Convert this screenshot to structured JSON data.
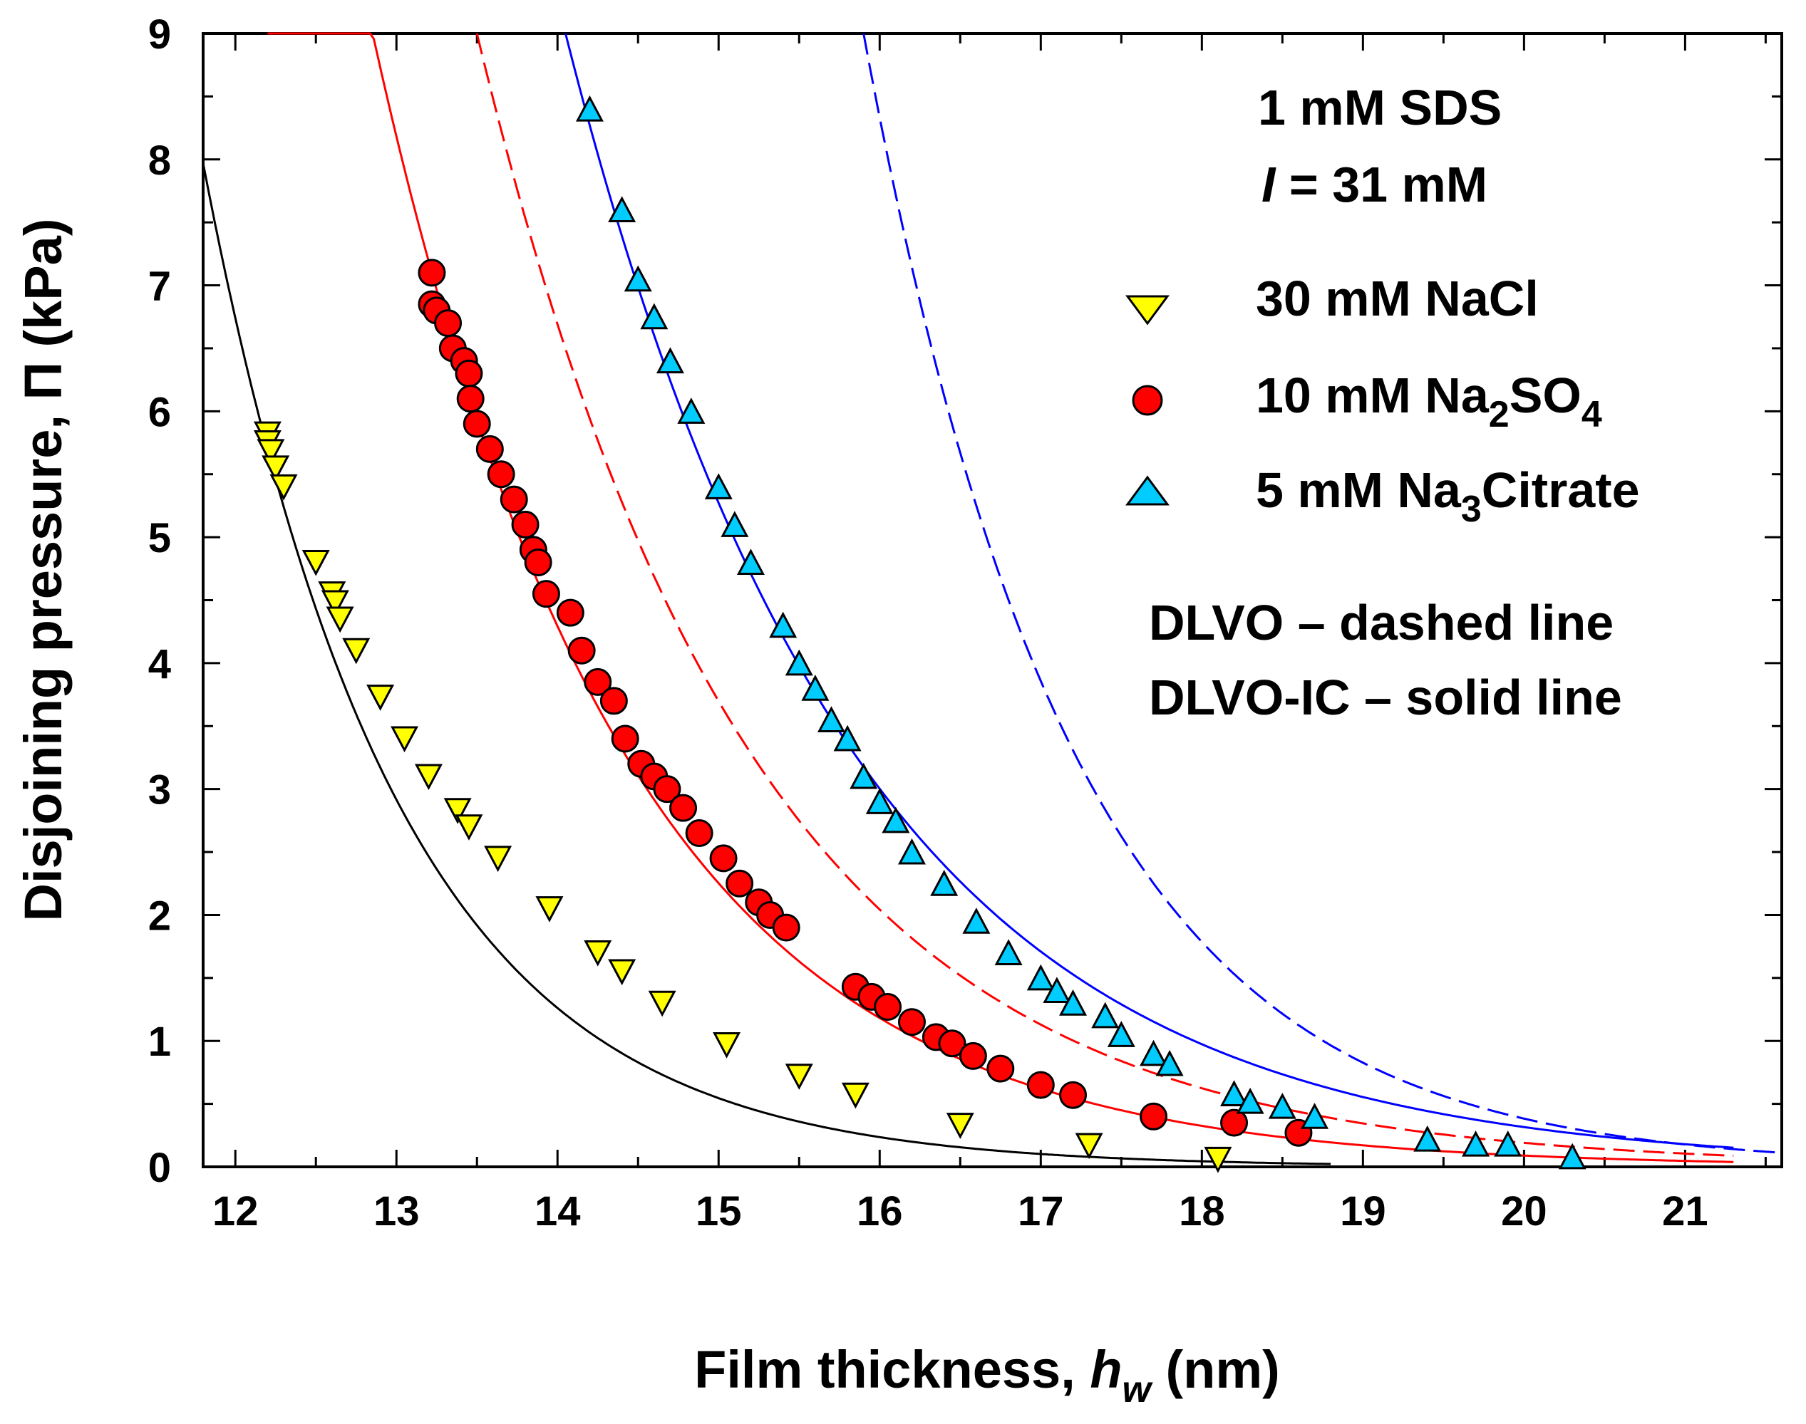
{
  "chart_data": {
    "type": "scatter",
    "xlabel": "Film thickness, ",
    "xlabel_var": "h",
    "xlabel_sub": "w",
    "xlabel_unit": " (nm)",
    "ylabel": "Disjoining pressure, Π (kPa)",
    "xlim": [
      11.8,
      21.6
    ],
    "ylim": [
      0,
      9
    ],
    "xticks": [
      12,
      13,
      14,
      15,
      16,
      17,
      18,
      19,
      20,
      21
    ],
    "yticks": [
      0,
      1,
      2,
      3,
      4,
      5,
      6,
      7,
      8,
      9
    ],
    "annotations": {
      "line1": "1 mM SDS",
      "line2_var": "I",
      "line2_rest": " = 31 mM",
      "dlvo_note": "DLVO – dashed line",
      "dlvoic_note": "DLVO-IC – solid line"
    },
    "series": [
      {
        "name": "30 mM NaCl",
        "legend": {
          "pre": "30 mM NaCl",
          "sub": "",
          "post": ""
        },
        "marker": "triangle-down",
        "color": "#ffff00",
        "points": [
          [
            12.2,
            5.82
          ],
          [
            12.2,
            5.75
          ],
          [
            12.22,
            5.68
          ],
          [
            12.25,
            5.55
          ],
          [
            12.3,
            5.4
          ],
          [
            12.5,
            4.8
          ],
          [
            12.6,
            4.55
          ],
          [
            12.62,
            4.48
          ],
          [
            12.65,
            4.35
          ],
          [
            12.75,
            4.1
          ],
          [
            12.9,
            3.73
          ],
          [
            13.05,
            3.4
          ],
          [
            13.2,
            3.1
          ],
          [
            13.38,
            2.83
          ],
          [
            13.45,
            2.7
          ],
          [
            13.63,
            2.45
          ],
          [
            13.95,
            2.05
          ],
          [
            14.25,
            1.7
          ],
          [
            14.4,
            1.55
          ],
          [
            14.65,
            1.3
          ],
          [
            15.05,
            0.97
          ],
          [
            15.5,
            0.72
          ],
          [
            15.85,
            0.57
          ],
          [
            16.5,
            0.33
          ],
          [
            17.3,
            0.17
          ],
          [
            18.1,
            0.06
          ]
        ],
        "fit_solid": {
          "A": 5.7,
          "x0": 12.2,
          "k": 0.838,
          "xmin": 11.8,
          "xmax": 18.8
        }
      },
      {
        "name": "10 mM Na2SO4",
        "legend": {
          "pre": "10 mM Na",
          "sub": "2",
          "post": "SO",
          "sub2": "4"
        },
        "marker": "circle",
        "color": "#ff0000",
        "points": [
          [
            13.22,
            7.1
          ],
          [
            13.22,
            6.85
          ],
          [
            13.25,
            6.8
          ],
          [
            13.32,
            6.7
          ],
          [
            13.35,
            6.5
          ],
          [
            13.42,
            6.4
          ],
          [
            13.45,
            6.3
          ],
          [
            13.46,
            6.1
          ],
          [
            13.5,
            5.9
          ],
          [
            13.58,
            5.7
          ],
          [
            13.65,
            5.5
          ],
          [
            13.73,
            5.3
          ],
          [
            13.8,
            5.1
          ],
          [
            13.85,
            4.9
          ],
          [
            13.88,
            4.8
          ],
          [
            13.93,
            4.55
          ],
          [
            14.08,
            4.4
          ],
          [
            14.15,
            4.1
          ],
          [
            14.25,
            3.85
          ],
          [
            14.35,
            3.7
          ],
          [
            14.42,
            3.4
          ],
          [
            14.52,
            3.2
          ],
          [
            14.6,
            3.1
          ],
          [
            14.68,
            3.0
          ],
          [
            14.78,
            2.85
          ],
          [
            14.88,
            2.65
          ],
          [
            15.03,
            2.45
          ],
          [
            15.13,
            2.25
          ],
          [
            15.25,
            2.1
          ],
          [
            15.32,
            2.0
          ],
          [
            15.42,
            1.9
          ],
          [
            15.85,
            1.43
          ],
          [
            15.95,
            1.35
          ],
          [
            16.05,
            1.27
          ],
          [
            16.2,
            1.15
          ],
          [
            16.35,
            1.03
          ],
          [
            16.45,
            0.98
          ],
          [
            16.58,
            0.88
          ],
          [
            16.75,
            0.78
          ],
          [
            17.0,
            0.65
          ],
          [
            17.2,
            0.57
          ],
          [
            17.7,
            0.4
          ],
          [
            18.2,
            0.35
          ],
          [
            18.6,
            0.27
          ]
        ],
        "fit_solid": {
          "A": 7.1,
          "x0": 13.22,
          "k": 0.645,
          "xmin": 12.2,
          "xmax": 21.3
        },
        "fit_dashed": {
          "A": 9.0,
          "x0": 13.5,
          "k": 0.593,
          "xmin": 13.5,
          "xmax": 21.3
        }
      },
      {
        "name": "5 mM Na3Citrate",
        "legend": {
          "pre": "5 mM Na",
          "sub": "3",
          "post": "Citrate"
        },
        "marker": "triangle-up",
        "color": "#00ccff",
        "points": [
          [
            14.2,
            8.4
          ],
          [
            14.4,
            7.6
          ],
          [
            14.5,
            7.05
          ],
          [
            14.6,
            6.75
          ],
          [
            14.7,
            6.4
          ],
          [
            14.83,
            6.0
          ],
          [
            15.0,
            5.4
          ],
          [
            15.1,
            5.1
          ],
          [
            15.2,
            4.8
          ],
          [
            15.4,
            4.3
          ],
          [
            15.5,
            4.0
          ],
          [
            15.6,
            3.8
          ],
          [
            15.7,
            3.55
          ],
          [
            15.8,
            3.4
          ],
          [
            15.9,
            3.1
          ],
          [
            16.0,
            2.9
          ],
          [
            16.1,
            2.75
          ],
          [
            16.2,
            2.5
          ],
          [
            16.4,
            2.25
          ],
          [
            16.6,
            1.95
          ],
          [
            16.8,
            1.7
          ],
          [
            17.0,
            1.5
          ],
          [
            17.1,
            1.4
          ],
          [
            17.2,
            1.3
          ],
          [
            17.4,
            1.2
          ],
          [
            17.5,
            1.05
          ],
          [
            17.7,
            0.9
          ],
          [
            17.8,
            0.82
          ],
          [
            18.2,
            0.58
          ],
          [
            18.3,
            0.52
          ],
          [
            18.5,
            0.48
          ],
          [
            18.7,
            0.4
          ],
          [
            19.4,
            0.22
          ],
          [
            19.7,
            0.18
          ],
          [
            19.9,
            0.18
          ],
          [
            20.3,
            0.08
          ]
        ],
        "fit_solid": {
          "A": 9.0,
          "x0": 14.05,
          "k": 0.563,
          "xmin": 14.05,
          "xmax": 21.3
        },
        "fit_dashed": {
          "A": 9.0,
          "x0": 15.9,
          "k": 0.77,
          "xmin": 15.9,
          "xmax": 21.6
        }
      }
    ]
  },
  "colors": {
    "NaCl": "#ffff00",
    "Na2SO4": "#ff0000",
    "Citrate": "#00ccff",
    "fit_NaCl": "#000000",
    "fit_Na2SO4": "#ff0000",
    "fit_Citrate": "#0000ff"
  }
}
